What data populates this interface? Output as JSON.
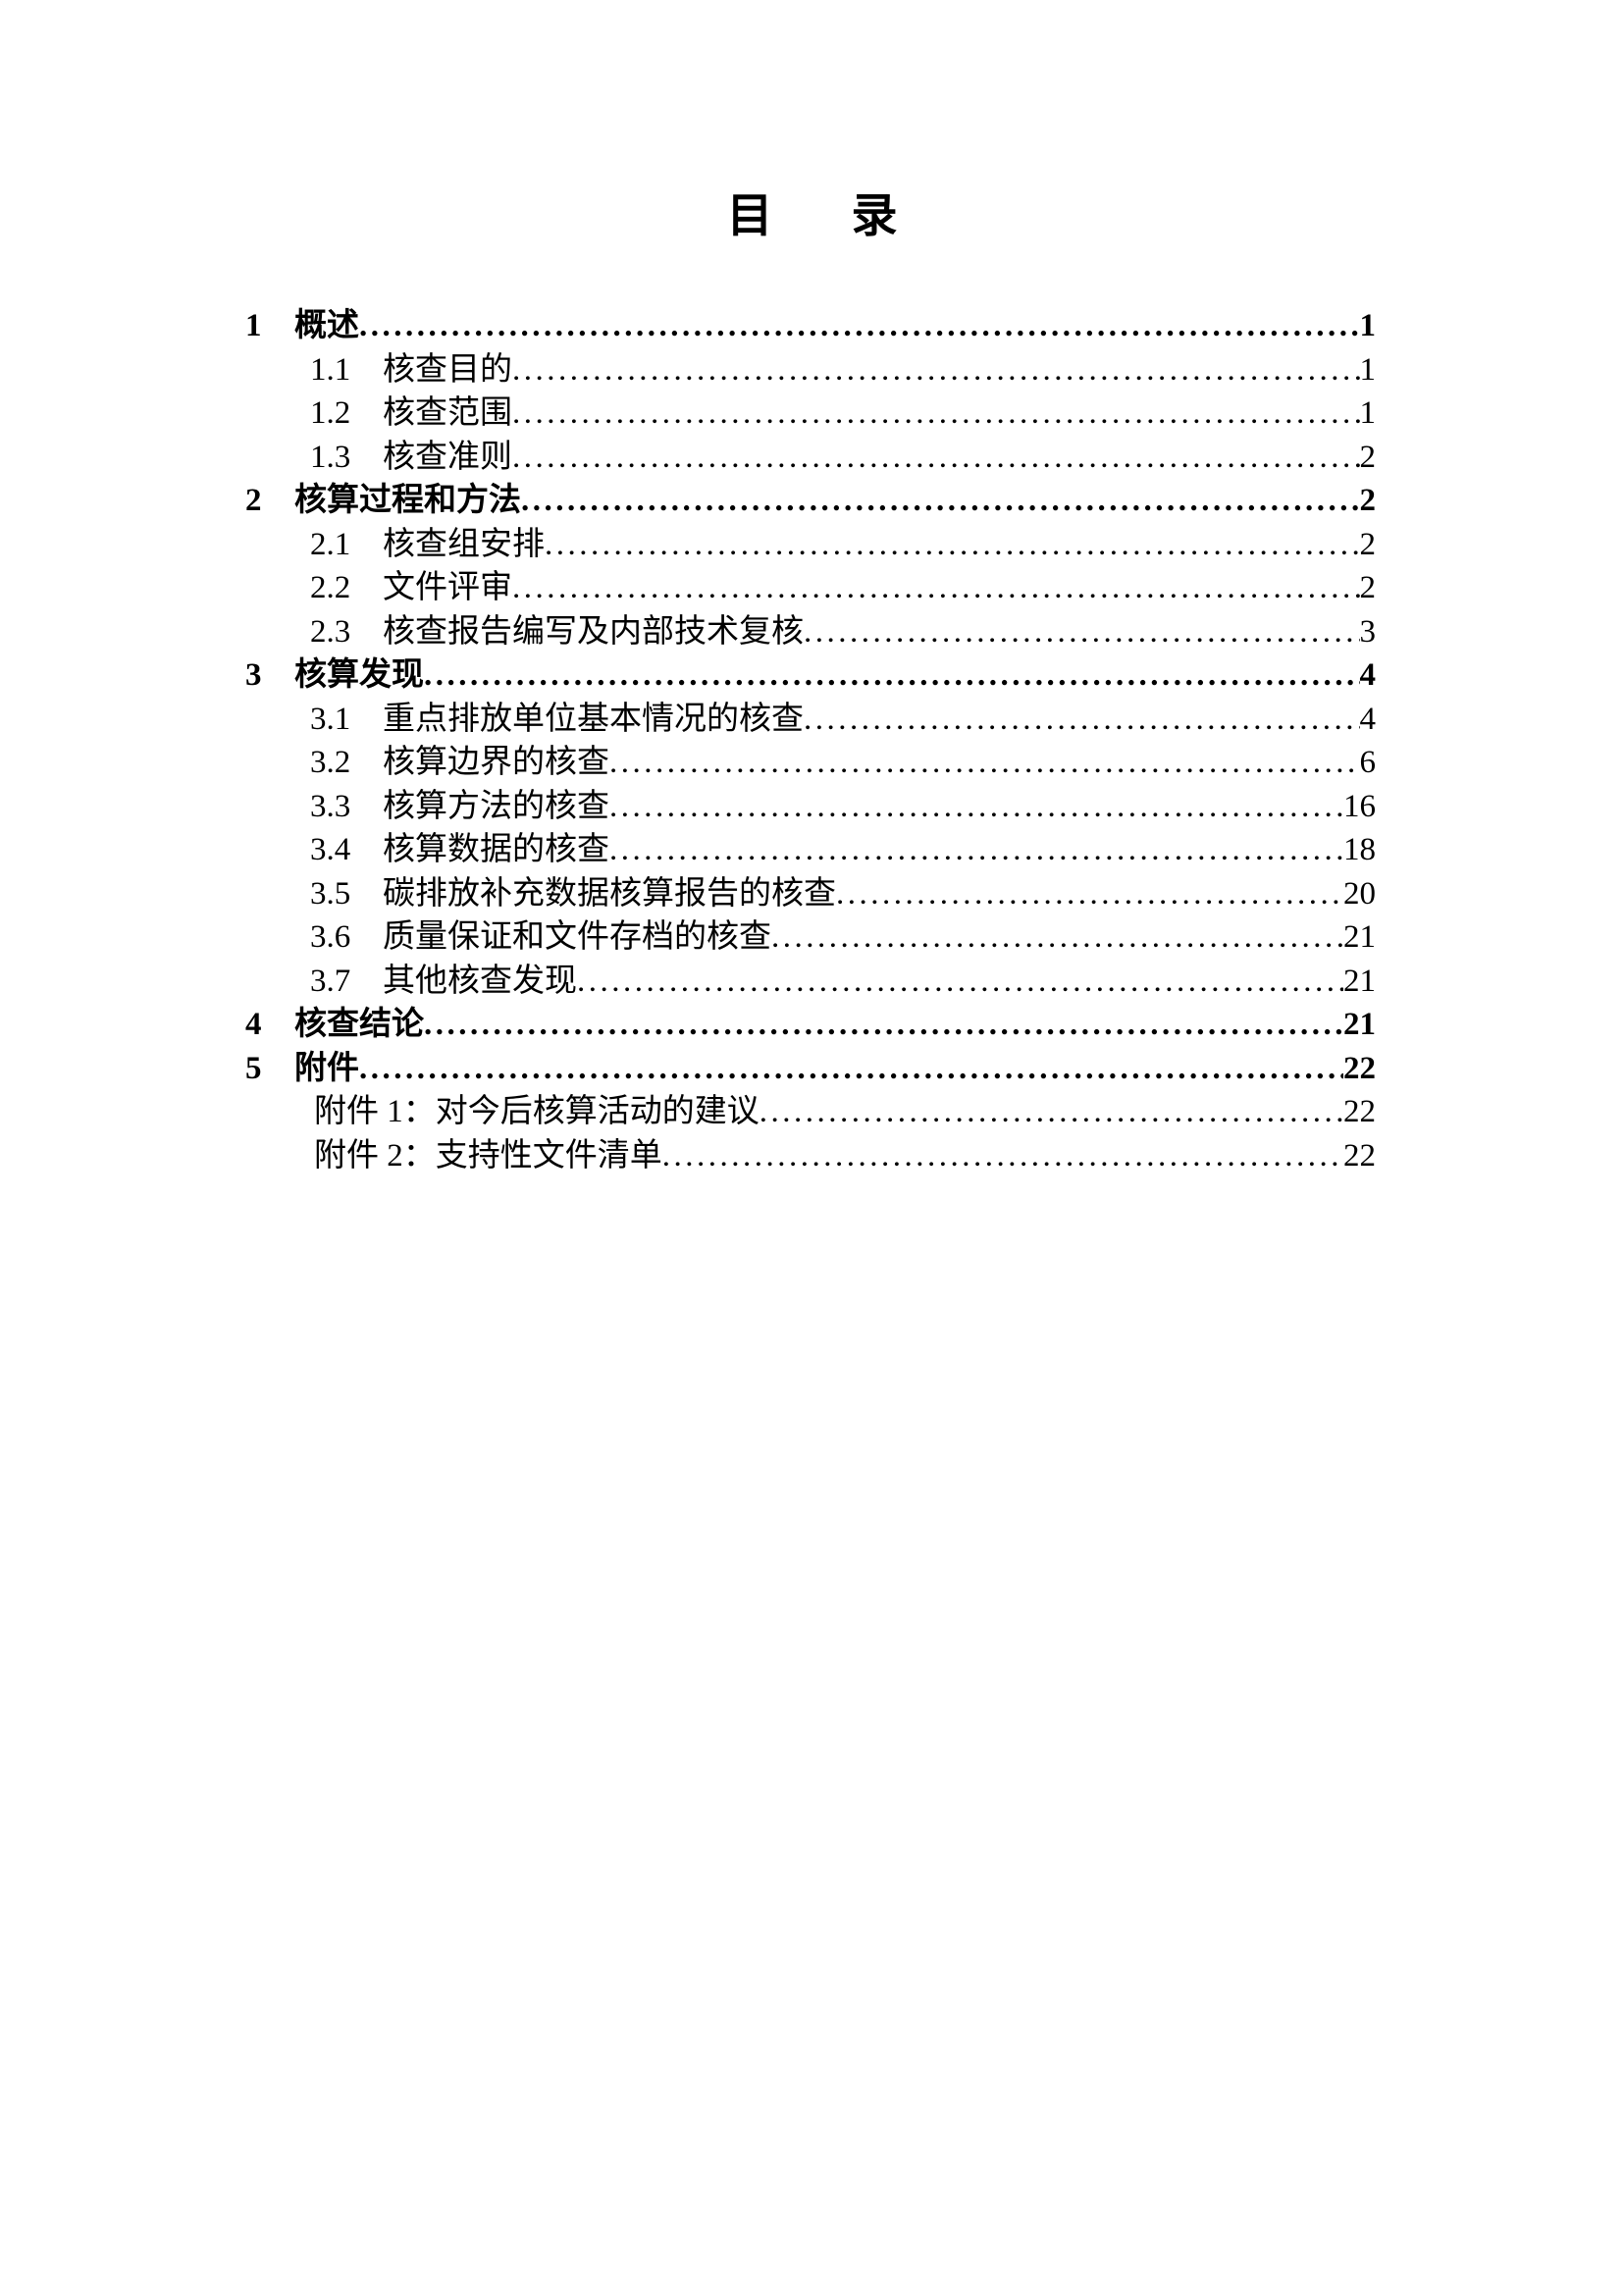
{
  "page": {
    "title_parts": [
      "目",
      "录"
    ]
  },
  "toc": {
    "entries": [
      {
        "level": 1,
        "num": "1",
        "label": "概述",
        "page": "1"
      },
      {
        "level": 2,
        "num": "1.1",
        "label": "核查目的",
        "page": "1"
      },
      {
        "level": 2,
        "num": "1.2",
        "label": "核查范围",
        "page": "1"
      },
      {
        "level": 2,
        "num": "1.3",
        "label": "核查准则",
        "page": "2"
      },
      {
        "level": 1,
        "num": "2",
        "label": "核算过程和方法",
        "page": "2"
      },
      {
        "level": 2,
        "num": "2.1",
        "label": "核查组安排",
        "page": "2"
      },
      {
        "level": 2,
        "num": "2.2",
        "label": "文件评审",
        "page": "2"
      },
      {
        "level": 2,
        "num": "2.3",
        "label": "核查报告编写及内部技术复核",
        "page": "3"
      },
      {
        "level": 1,
        "num": "3",
        "label": "核算发现",
        "page": "4"
      },
      {
        "level": 2,
        "num": "3.1",
        "label": "重点排放单位基本情况的核查",
        "page": "4"
      },
      {
        "level": 2,
        "num": "3.2",
        "label": "核算边界的核查",
        "page": "6"
      },
      {
        "level": 2,
        "num": "3.3",
        "label": "核算方法的核查",
        "page": "16"
      },
      {
        "level": 2,
        "num": "3.4",
        "label": "核算数据的核查",
        "page": "18"
      },
      {
        "level": 2,
        "num": "3.5",
        "label": "碳排放补充数据核算报告的核查",
        "page": "20"
      },
      {
        "level": 2,
        "num": "3.6",
        "label": "质量保证和文件存档的核查",
        "page": "21"
      },
      {
        "level": 2,
        "num": "3.7",
        "label": "其他核查发现",
        "page": "21"
      },
      {
        "level": 1,
        "num": "4",
        "label": "核查结论",
        "page": "21"
      },
      {
        "level": 1,
        "num": "5",
        "label": "附件",
        "page": "22"
      },
      {
        "level": 3,
        "num": "",
        "label": "附件 1：对今后核算活动的建议",
        "page": "22"
      },
      {
        "level": 3,
        "num": "",
        "label": "附件 2：支持性文件清单",
        "page": "22"
      }
    ]
  }
}
